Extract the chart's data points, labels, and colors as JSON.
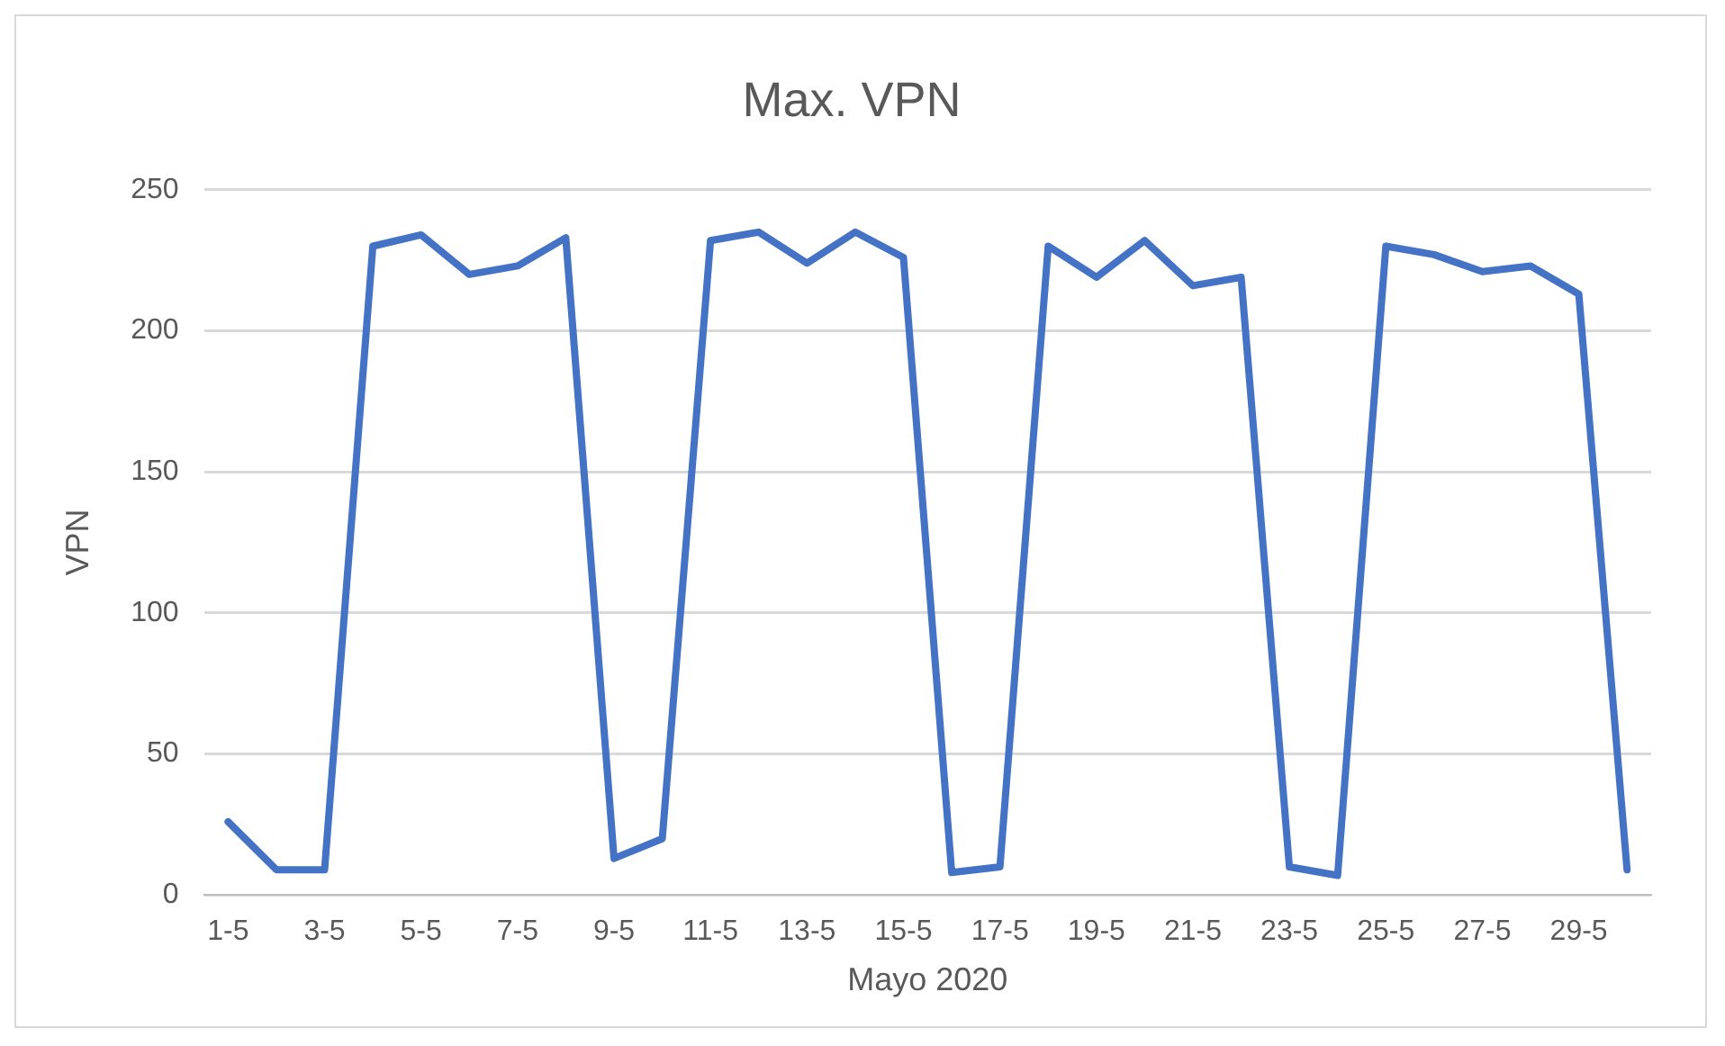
{
  "chart_data": {
    "type": "line",
    "title": "Max. VPN",
    "xlabel": "Mayo 2020",
    "ylabel": "VPN",
    "categories": [
      "1-5",
      null,
      "3-5",
      null,
      "5-5",
      null,
      "7-5",
      null,
      "9-5",
      null,
      "11-5",
      null,
      "13-5",
      null,
      "15-5",
      null,
      "17-5",
      null,
      "19-5",
      null,
      "21-5",
      null,
      "23-5",
      null,
      "25-5",
      null,
      "27-5",
      null,
      "29-5",
      null
    ],
    "series": [
      {
        "color": "#4472c4",
        "values": [
          26,
          9,
          9,
          230,
          234,
          220,
          223,
          233,
          13,
          20,
          232,
          235,
          224,
          235,
          226,
          8,
          10,
          230,
          219,
          232,
          216,
          219,
          10,
          7,
          230,
          227,
          221,
          223,
          213,
          9
        ]
      }
    ],
    "ylim": [
      0,
      250
    ],
    "yticks": [
      0,
      50,
      100,
      150,
      200,
      250
    ],
    "grid": "y",
    "legend": false,
    "marker": "none",
    "line_style": "solid"
  }
}
